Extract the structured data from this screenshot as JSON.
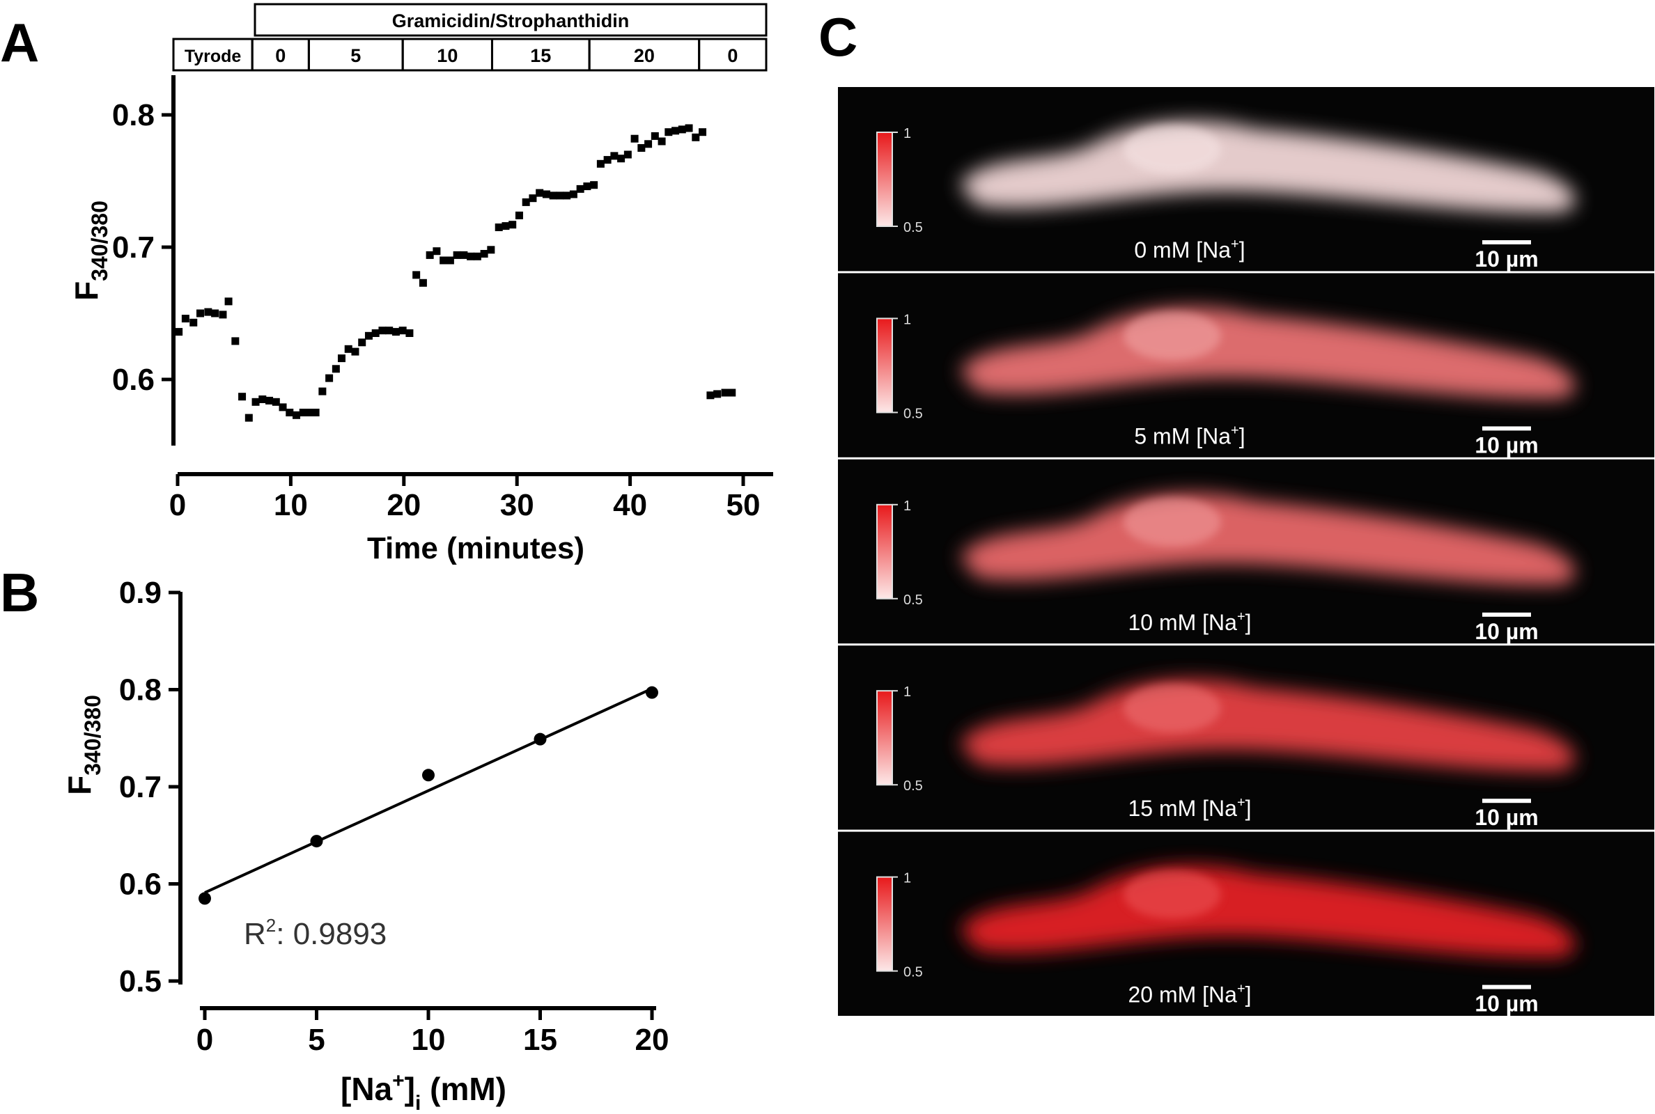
{
  "panel_labels": {
    "a": "A",
    "b": "B",
    "c": "C"
  },
  "colors": {
    "axis": "#000000",
    "marker": "#000000",
    "image_bg": "#050505",
    "fluor_red": "#e8191b",
    "fluor_white": "#f8e6e6"
  },
  "chart_data": [
    {
      "type": "scatter",
      "panel": "A",
      "title": "",
      "xlabel": "Time (minutes)",
      "ylabel_main": "F",
      "ylabel_sub": "340/380",
      "xlim": [
        0,
        53
      ],
      "ylim": [
        0.55,
        0.83
      ],
      "x_ticks": [
        "0",
        "10",
        "20",
        "30",
        "40",
        "50"
      ],
      "x_tick_values": [
        0,
        10,
        20,
        30,
        40,
        50
      ],
      "y_ticks": [
        "0.6",
        "0.7",
        "0.8"
      ],
      "y_tick_values": [
        0.6,
        0.7,
        0.8
      ],
      "marker": "square",
      "condition_header": "Gramicidin/Strophanthidin",
      "conditions": [
        {
          "label": "Tyrode",
          "start": -0.5,
          "end": 6.6
        },
        {
          "label": "0",
          "start": 6.6,
          "end": 11.6
        },
        {
          "label": "5",
          "start": 11.6,
          "end": 19.9
        },
        {
          "label": "10",
          "start": 19.9,
          "end": 27.8
        },
        {
          "label": "15",
          "start": 27.8,
          "end": 36.4
        },
        {
          "label": "20",
          "start": 36.4,
          "end": 46.1
        },
        {
          "label": "0",
          "start": 46.1,
          "end": 52.2
        }
      ],
      "points": [
        [
          0.1,
          0.636
        ],
        [
          0.7,
          0.646
        ],
        [
          1.4,
          0.643
        ],
        [
          2.0,
          0.65
        ],
        [
          2.7,
          0.651
        ],
        [
          3.3,
          0.65
        ],
        [
          4.0,
          0.649
        ],
        [
          4.5,
          0.659
        ],
        [
          5.1,
          0.629
        ],
        [
          5.7,
          0.587
        ],
        [
          6.3,
          0.571
        ],
        [
          6.9,
          0.583
        ],
        [
          7.5,
          0.585
        ],
        [
          8.1,
          0.584
        ],
        [
          8.7,
          0.583
        ],
        [
          9.3,
          0.579
        ],
        [
          9.9,
          0.575
        ],
        [
          10.5,
          0.573
        ],
        [
          11.1,
          0.575
        ],
        [
          11.7,
          0.575
        ],
        [
          12.2,
          0.575
        ],
        [
          12.8,
          0.591
        ],
        [
          13.4,
          0.601
        ],
        [
          14.0,
          0.608
        ],
        [
          14.5,
          0.616
        ],
        [
          15.1,
          0.623
        ],
        [
          15.7,
          0.621
        ],
        [
          16.3,
          0.628
        ],
        [
          16.9,
          0.633
        ],
        [
          17.5,
          0.635
        ],
        [
          18.1,
          0.637
        ],
        [
          18.7,
          0.637
        ],
        [
          19.3,
          0.636
        ],
        [
          19.9,
          0.637
        ],
        [
          20.5,
          0.635
        ],
        [
          21.1,
          0.679
        ],
        [
          21.7,
          0.673
        ],
        [
          22.3,
          0.694
        ],
        [
          22.9,
          0.697
        ],
        [
          23.5,
          0.69
        ],
        [
          24.1,
          0.69
        ],
        [
          24.7,
          0.694
        ],
        [
          25.3,
          0.694
        ],
        [
          25.9,
          0.693
        ],
        [
          26.5,
          0.693
        ],
        [
          27.1,
          0.695
        ],
        [
          27.7,
          0.698
        ],
        [
          28.4,
          0.715
        ],
        [
          29.0,
          0.716
        ],
        [
          29.6,
          0.717
        ],
        [
          30.2,
          0.724
        ],
        [
          30.8,
          0.734
        ],
        [
          31.4,
          0.737
        ],
        [
          32.0,
          0.741
        ],
        [
          32.6,
          0.74
        ],
        [
          33.2,
          0.739
        ],
        [
          33.8,
          0.739
        ],
        [
          34.4,
          0.739
        ],
        [
          35.0,
          0.74
        ],
        [
          35.6,
          0.744
        ],
        [
          36.2,
          0.746
        ],
        [
          36.8,
          0.747
        ],
        [
          37.4,
          0.763
        ],
        [
          38.0,
          0.766
        ],
        [
          38.6,
          0.769
        ],
        [
          39.2,
          0.767
        ],
        [
          39.8,
          0.77
        ],
        [
          40.4,
          0.782
        ],
        [
          41.0,
          0.775
        ],
        [
          41.6,
          0.778
        ],
        [
          42.2,
          0.784
        ],
        [
          42.8,
          0.78
        ],
        [
          43.4,
          0.787
        ],
        [
          44.0,
          0.788
        ],
        [
          44.6,
          0.789
        ],
        [
          45.2,
          0.79
        ],
        [
          45.8,
          0.783
        ],
        [
          46.4,
          0.787
        ],
        [
          47.1,
          0.588
        ],
        [
          47.7,
          0.589
        ],
        [
          48.4,
          0.59
        ],
        [
          49.0,
          0.59
        ]
      ]
    },
    {
      "type": "scatter",
      "panel": "B",
      "title": "",
      "xlabel_main": "[Na",
      "xlabel_sup": "+",
      "xlabel_close": "]",
      "xlabel_sub": "i",
      "xlabel_unit": " (mM)",
      "ylabel_main": "F",
      "ylabel_sub": "340/380",
      "xlim": [
        -0.5,
        20.5
      ],
      "ylim": [
        0.5,
        0.9
      ],
      "x_ticks": [
        "0",
        "5",
        "10",
        "15",
        "20"
      ],
      "x_tick_values": [
        0,
        5,
        10,
        15,
        20
      ],
      "y_ticks": [
        "0.5",
        "0.6",
        "0.7",
        "0.8",
        "0.9"
      ],
      "y_tick_values": [
        0.5,
        0.6,
        0.7,
        0.8,
        0.9
      ],
      "x": [
        0,
        5,
        10,
        15,
        20
      ],
      "y": [
        0.585,
        0.644,
        0.712,
        0.749,
        0.797
      ],
      "fit_line": {
        "x": [
          0,
          20
        ],
        "y": [
          0.591,
          0.801
        ]
      },
      "annotation_main": "R",
      "annotation_sup": "2",
      "annotation_rest": ": 0.9893"
    }
  ],
  "panel_c": {
    "colorbar_max": "1",
    "colorbar_min": "0.5",
    "scale_bar_label": "10 µm",
    "images": [
      {
        "concentration": "0 mM [Na",
        "sup": "+",
        "close": "]",
        "red_level": 0.05
      },
      {
        "concentration": "5 mM [Na",
        "sup": "+",
        "close": "]",
        "red_level": 0.55
      },
      {
        "concentration": "10 mM [Na",
        "sup": "+",
        "close": "]",
        "red_level": 0.6
      },
      {
        "concentration": "15 mM [Na",
        "sup": "+",
        "close": "]",
        "red_level": 0.8
      },
      {
        "concentration": "20 mM [Na",
        "sup": "+",
        "close": "]",
        "red_level": 0.95
      }
    ]
  }
}
